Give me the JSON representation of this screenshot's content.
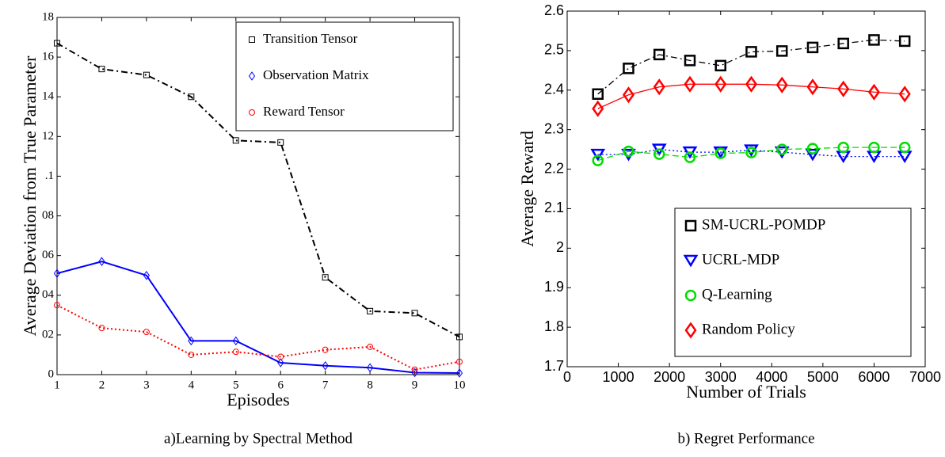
{
  "chart_data": [
    {
      "type": "line",
      "caption": "a)Learning by Spectral Method",
      "xlabel": "Episodes",
      "ylabel": "Average Deviation from True Parameter",
      "x": [
        1,
        2,
        3,
        4,
        5,
        6,
        7,
        8,
        9,
        10
      ],
      "series": [
        {
          "name": "Transition Tensor",
          "color": "#000000",
          "marker": "square",
          "linestyle": "dashdot",
          "values": [
            0.167,
            0.154,
            0.151,
            0.14,
            0.118,
            0.117,
            0.049,
            0.032,
            0.031,
            0.019
          ]
        },
        {
          "name": "Observation Matrix",
          "color": "#0000ff",
          "marker": "diamond",
          "linestyle": "solid",
          "values": [
            0.051,
            0.057,
            0.05,
            0.017,
            0.017,
            0.006,
            0.0045,
            0.0035,
            0.001,
            0.0008
          ]
        },
        {
          "name": "Reward Tensor",
          "color": "#ff0000",
          "marker": "circle",
          "linestyle": "dotted",
          "values": [
            0.035,
            0.0235,
            0.0215,
            0.01,
            0.0115,
            0.009,
            0.0125,
            0.014,
            0.0025,
            0.0065
          ]
        }
      ],
      "xlim": [
        1,
        10
      ],
      "xticks": [
        1,
        2,
        3,
        4,
        5,
        6,
        7,
        8,
        9,
        10
      ],
      "ylim": [
        0,
        0.18
      ],
      "yticks": [
        0,
        {
          "value": 0.02,
          "label": "02"
        },
        {
          "value": 0.04,
          "label": "04"
        },
        {
          "value": 0.06,
          "label": "06"
        },
        {
          "value": 0.08,
          "label": "08"
        },
        {
          "value": 0.1,
          "label": ".1"
        },
        {
          "value": 0.12,
          "label": "12"
        },
        {
          "value": 0.14,
          "label": "14"
        },
        {
          "value": 0.16,
          "label": "16"
        },
        {
          "value": 0.18,
          "label": "18"
        }
      ],
      "legend": "upper right"
    },
    {
      "type": "line",
      "caption": "b) Regret Performance",
      "xlabel": "Number of Trials",
      "ylabel": "Average Reward",
      "x": [
        600,
        1200,
        1800,
        2400,
        3000,
        3600,
        4200,
        4800,
        5400,
        6000,
        6600
      ],
      "series": [
        {
          "name": "SM-UCRL-POMDP",
          "color": "#000000",
          "marker": "square",
          "linestyle": "dashdot",
          "values": [
            2.39,
            2.455,
            2.49,
            2.475,
            2.462,
            2.497,
            2.499,
            2.508,
            2.518,
            2.527,
            2.524
          ]
        },
        {
          "name": "UCRL-MDP",
          "color": "#0000ff",
          "marker": "triangle",
          "linestyle": "dotted",
          "values": [
            2.237,
            2.237,
            2.25,
            2.243,
            2.243,
            2.248,
            2.243,
            2.237,
            2.232,
            2.232,
            2.232
          ]
        },
        {
          "name": "Q-Learning",
          "color": "#00dd00",
          "marker": "circle",
          "linestyle": "dashed",
          "values": [
            2.222,
            2.245,
            2.238,
            2.23,
            2.24,
            2.242,
            2.25,
            2.252,
            2.255,
            2.255,
            2.255
          ]
        },
        {
          "name": "Random Policy",
          "color": "#ff0000",
          "marker": "diamond",
          "linestyle": "solid",
          "values": [
            2.353,
            2.388,
            2.408,
            2.415,
            2.415,
            2.415,
            2.413,
            2.408,
            2.403,
            2.395,
            2.39
          ]
        }
      ],
      "xlim": [
        0,
        7000
      ],
      "xticks": [
        0,
        1000,
        2000,
        3000,
        4000,
        5000,
        6000,
        7000
      ],
      "ylim": [
        1.7,
        2.6
      ],
      "yticks": [
        1.7,
        1.8,
        1.9,
        2,
        2.1,
        2.2,
        2.3,
        2.4,
        2.5,
        2.6
      ],
      "legend": "lower right"
    }
  ]
}
